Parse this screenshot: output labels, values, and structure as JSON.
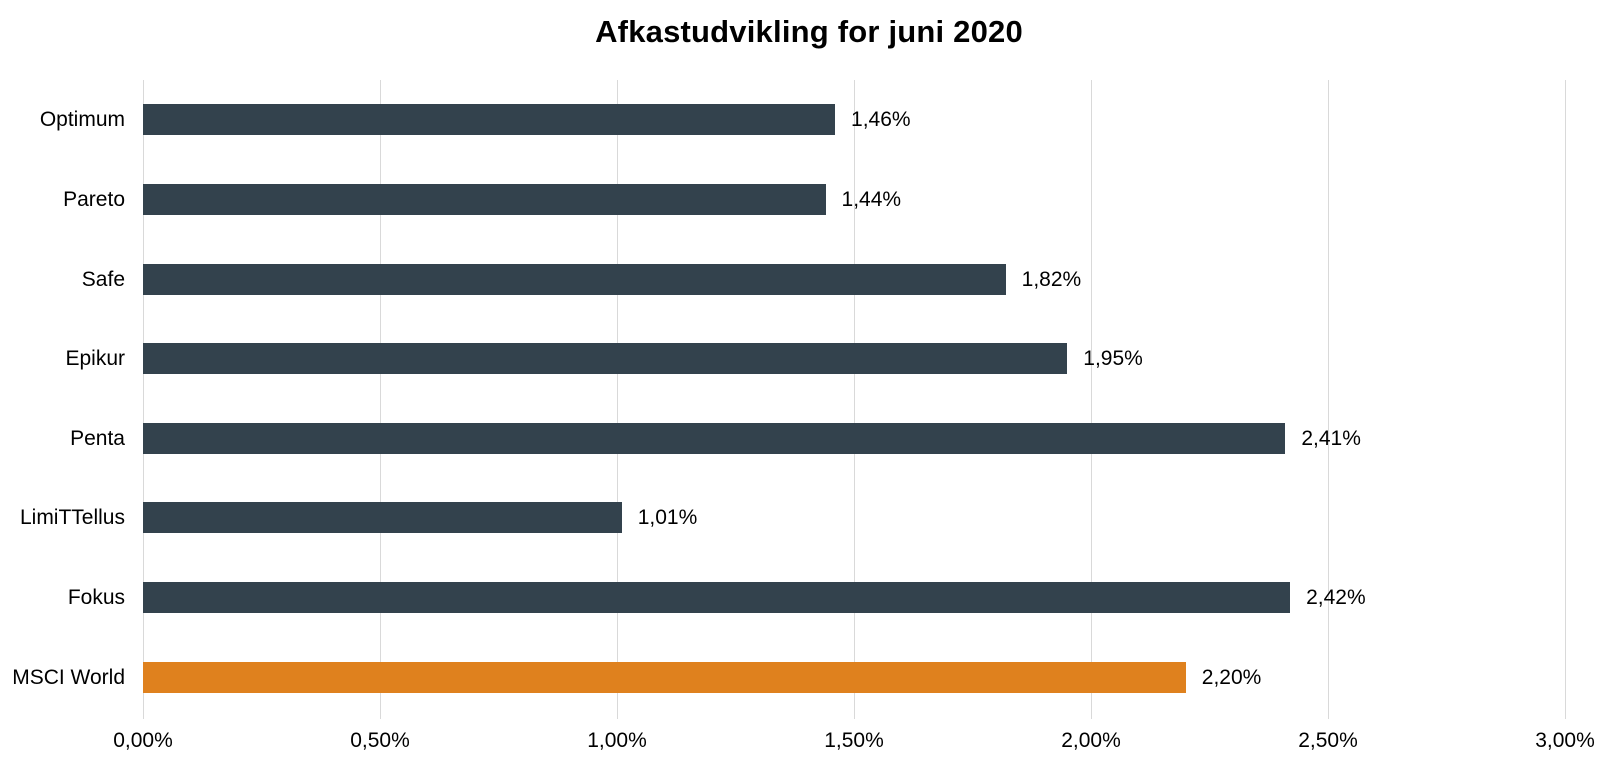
{
  "title": "Afkastudvikling for juni 2020",
  "chart_data": {
    "type": "bar",
    "orientation": "horizontal",
    "title": "Afkastudvikling for juni 2020",
    "categories": [
      "Optimum",
      "Pareto",
      "Safe",
      "Epikur",
      "Penta",
      "LimiTTellus",
      "Fokus",
      "MSCI World"
    ],
    "values": [
      1.46,
      1.44,
      1.82,
      1.95,
      2.41,
      1.01,
      2.42,
      2.2
    ],
    "value_labels": [
      "1,46%",
      "1,44%",
      "1,82%",
      "1,95%",
      "2,41%",
      "1,01%",
      "2,42%",
      "2,20%"
    ],
    "xlabel": "",
    "ylabel": "",
    "xlim": [
      0,
      3
    ],
    "x_ticks": [
      0,
      0.5,
      1,
      1.5,
      2,
      2.5,
      3
    ],
    "x_tick_labels": [
      "0,00%",
      "0,50%",
      "1,00%",
      "1,50%",
      "2,00%",
      "2,50%",
      "3,00%"
    ],
    "grid": "vertical-only",
    "legend": "none",
    "bar_color": "#33424D",
    "highlight_category": "MSCI World",
    "highlight_color": "#DF811E",
    "gridline_color": "#D9D9D9",
    "text_color": "#000000",
    "background_color": "#FFFFFF"
  }
}
